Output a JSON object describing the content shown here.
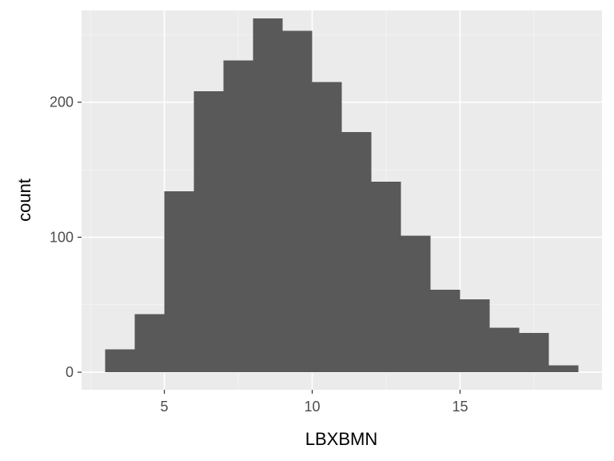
{
  "chart_data": {
    "type": "bar",
    "subtype": "histogram",
    "xlabel": "LBXBMN",
    "ylabel": "count",
    "xlim": [
      2.2,
      19.8
    ],
    "ylim": [
      -13,
      268
    ],
    "x_ticks": [
      5,
      10,
      15
    ],
    "y_ticks": [
      0,
      100,
      200
    ],
    "grid": true,
    "bins": [
      {
        "start": 3,
        "end": 4,
        "count": 17
      },
      {
        "start": 4,
        "end": 5,
        "count": 43
      },
      {
        "start": 5,
        "end": 6,
        "count": 134
      },
      {
        "start": 6,
        "end": 7,
        "count": 208
      },
      {
        "start": 7,
        "end": 8,
        "count": 231
      },
      {
        "start": 8,
        "end": 9,
        "count": 262
      },
      {
        "start": 9,
        "end": 10,
        "count": 253
      },
      {
        "start": 10,
        "end": 11,
        "count": 215
      },
      {
        "start": 11,
        "end": 12,
        "count": 178
      },
      {
        "start": 12,
        "end": 13,
        "count": 141
      },
      {
        "start": 13,
        "end": 14,
        "count": 101
      },
      {
        "start": 14,
        "end": 15,
        "count": 61
      },
      {
        "start": 15,
        "end": 16,
        "count": 54
      },
      {
        "start": 16,
        "end": 17,
        "count": 33
      },
      {
        "start": 17,
        "end": 18,
        "count": 29
      },
      {
        "start": 18,
        "end": 19,
        "count": 5
      }
    ],
    "colors": {
      "panel_background": "#ebebeb",
      "grid_major": "#ffffff",
      "grid_minor": "#f5f5f5",
      "bar_fill": "#595959",
      "tick_text": "#4d4d4d",
      "axis_title": "#000000",
      "tick_mark": "#333333"
    }
  }
}
